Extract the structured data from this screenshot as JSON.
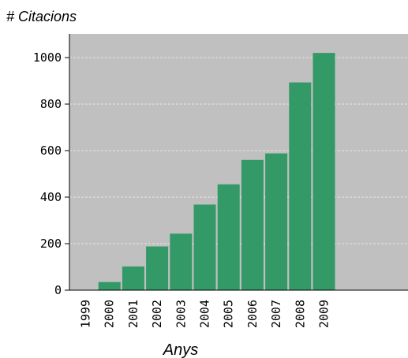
{
  "chart_data": {
    "type": "bar",
    "ylabel": "# Citacions",
    "xlabel": "Anys",
    "categories": [
      "1999",
      "2000",
      "2001",
      "2002",
      "2003",
      "2004",
      "2005",
      "2006",
      "2007",
      "2008",
      "2009"
    ],
    "values": [
      0,
      35,
      102,
      188,
      243,
      368,
      455,
      560,
      588,
      893,
      1020
    ],
    "ylim": [
      0,
      1000
    ],
    "yticks": [
      "0",
      "200",
      "400",
      "600",
      "800",
      "1000"
    ],
    "grid": true,
    "legend": "none",
    "colors": {
      "bar": "#339966",
      "plot_background": "#c0c0c0",
      "grid": "#e6e6e6"
    }
  }
}
